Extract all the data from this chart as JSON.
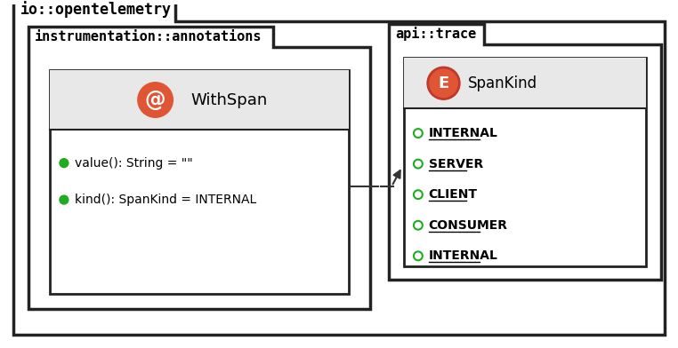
{
  "bg_color": "#ffffff",
  "outer_border_color": "#222222",
  "inner_fill": "#e8e8e8",
  "icon_fill": "#e05533",
  "icon_stroke": "#c0392b",
  "green_dot": "#22aa22",
  "arrow_color": "#333333",
  "text_color": "#000000",
  "outer_label": "io::opentelemetry",
  "pkg1_label": "instrumentation::annotations",
  "pkg2_label": "api::trace",
  "class_name": "WithSpan",
  "class_icon": "@",
  "enum_name": "SpanKind",
  "enum_icon": "E",
  "method1": "value(): String = \"\"",
  "method2": "kind(): SpanKind = INTERNAL",
  "enum_values": [
    "INTERNAL",
    "SERVER",
    "CLIENT",
    "CONSUMER",
    "INTERNAL"
  ]
}
